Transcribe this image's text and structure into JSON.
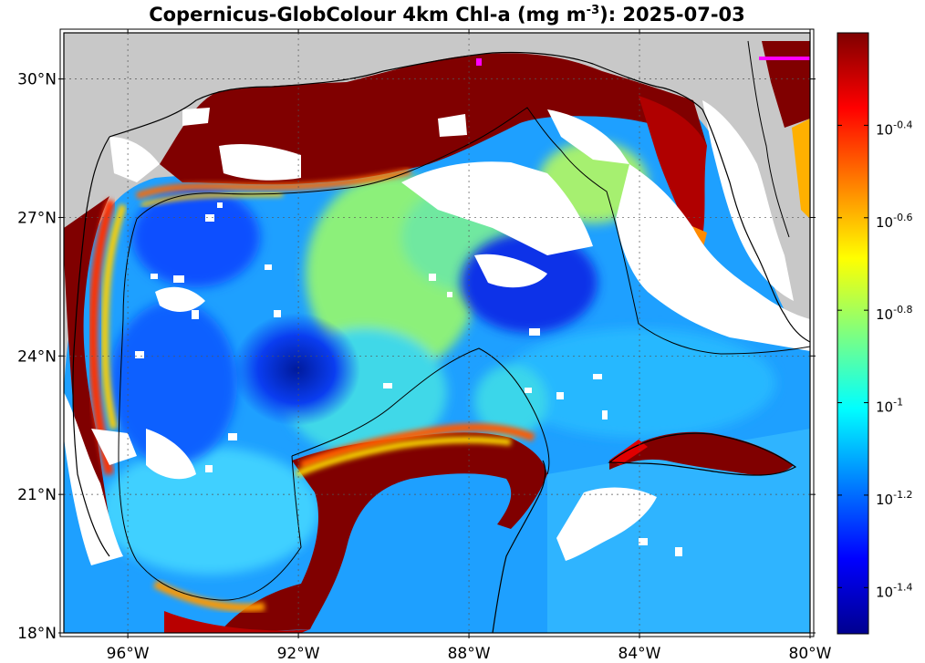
{
  "title": {
    "prefix": "Copernicus-GlobColour 4km Chl-a (mg m",
    "exponent": "-3",
    "suffix": "): 2025-07-03"
  },
  "map": {
    "region": "Gulf of Mexico",
    "lon_range": [
      -97.5,
      -80
    ],
    "lat_range": [
      18,
      31
    ],
    "x_ticks": [
      {
        "lon": -96,
        "label": "96°W"
      },
      {
        "lon": -92,
        "label": "92°W"
      },
      {
        "lon": -88,
        "label": "88°W"
      },
      {
        "lon": -84,
        "label": "84°W"
      },
      {
        "lon": -80,
        "label": "80°W"
      }
    ],
    "y_ticks": [
      {
        "lat": 30,
        "label": "30°N"
      },
      {
        "lat": 27,
        "label": "27°N"
      },
      {
        "lat": 24,
        "label": "24°N"
      },
      {
        "lat": 21,
        "label": "21°N"
      },
      {
        "lat": 18,
        "label": "18°N"
      }
    ],
    "grid": true,
    "land_color": "#c8c8c8",
    "no_data_color": "#ffffff",
    "marker_color": "#ff00ff"
  },
  "colorbar": {
    "scale": "log10",
    "range": [
      -1.5,
      -0.2
    ],
    "labels": [
      {
        "base": "10",
        "exp": "-0.4",
        "value": -0.4
      },
      {
        "base": "10",
        "exp": "-0.6",
        "value": -0.6
      },
      {
        "base": "10",
        "exp": "-0.8",
        "value": -0.8
      },
      {
        "base": "10",
        "exp": "-1",
        "value": -1.0
      },
      {
        "base": "10",
        "exp": "-1.2",
        "value": -1.2
      },
      {
        "base": "10",
        "exp": "-1.4",
        "value": -1.4
      }
    ],
    "colormap": [
      "#00008f",
      "#0000ff",
      "#007fff",
      "#00ffff",
      "#7fff7f",
      "#ffff00",
      "#ff7f00",
      "#ff0000",
      "#7f0000"
    ]
  }
}
